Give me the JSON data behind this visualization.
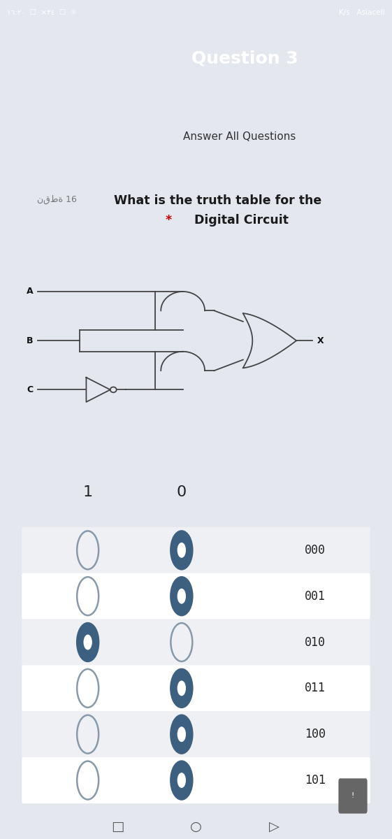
{
  "bg_top": "#5d7fa3",
  "bg_main": "#e4e8ee",
  "card_color": "#ffffff",
  "question_title": "Question 3",
  "answer_label": "Answer All Questions",
  "points_label": "نقطة 16",
  "question_text_line1": "What is the truth table for the",
  "question_text_line2": " Digital Circuit",
  "col1_label": "1",
  "col2_label": "0",
  "rows": [
    "000",
    "001",
    "010",
    "011",
    "100",
    "101"
  ],
  "row_selected_col": [
    1,
    1,
    0,
    1,
    1,
    1
  ],
  "question_color": "#1a1a1a",
  "asterisk_color": "#cc0000",
  "radio_border_empty": "#8899aa",
  "radio_fill": "#3d6080",
  "row_bg_alt": "#eef0f4",
  "row_bg_norm": "#ffffff",
  "circuit_color": "#444444",
  "label_color": "#333333"
}
